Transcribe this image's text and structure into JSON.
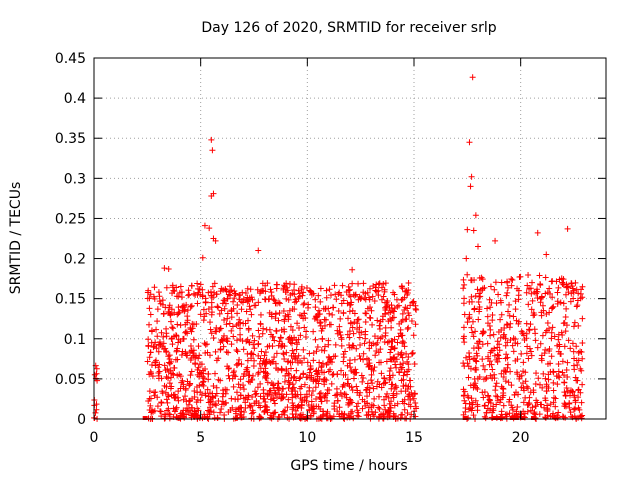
{
  "chart_data": {
    "type": "scatter",
    "title": "Day 126 of 2020, SRMTID for receiver srlp",
    "xlabel": "GPS time / hours",
    "ylabel": "SRMTID / TECUs",
    "xlim": [
      0,
      24
    ],
    "ylim": [
      0,
      0.45
    ],
    "x_ticks": [
      0,
      5,
      10,
      15,
      20
    ],
    "y_ticks": [
      0,
      0.05,
      0.1,
      0.15,
      0.2,
      0.25,
      0.3,
      0.35,
      0.4,
      0.45
    ],
    "x_tick_labels": [
      "0",
      "5",
      "10",
      "15",
      "20"
    ],
    "y_tick_labels": [
      "0",
      "0.05",
      "0.1",
      "0.15",
      "0.2",
      "0.25",
      "0.3",
      "0.35",
      "0.4",
      "0.45"
    ],
    "grid": true,
    "marker": "+",
    "color": "#ff0000",
    "series": [
      {
        "name": "SRMTID",
        "segments": [
          {
            "start": 0.0,
            "end": 0.15,
            "typical_max": 0.075,
            "count": 14
          },
          {
            "start": 2.5,
            "end": 15.1,
            "typical_max": 0.17,
            "count": 1650
          },
          {
            "start": 17.3,
            "end": 22.9,
            "typical_max": 0.18,
            "count": 620
          }
        ],
        "notable_points": [
          {
            "x": 5.5,
            "y": 0.348
          },
          {
            "x": 5.55,
            "y": 0.335
          },
          {
            "x": 5.5,
            "y": 0.278
          },
          {
            "x": 5.6,
            "y": 0.281
          },
          {
            "x": 5.2,
            "y": 0.241
          },
          {
            "x": 5.4,
            "y": 0.238
          },
          {
            "x": 5.6,
            "y": 0.225
          },
          {
            "x": 5.7,
            "y": 0.222
          },
          {
            "x": 5.1,
            "y": 0.201
          },
          {
            "x": 7.7,
            "y": 0.21
          },
          {
            "x": 3.3,
            "y": 0.188
          },
          {
            "x": 3.5,
            "y": 0.187
          },
          {
            "x": 12.1,
            "y": 0.186
          },
          {
            "x": 17.75,
            "y": 0.426
          },
          {
            "x": 17.6,
            "y": 0.345
          },
          {
            "x": 17.7,
            "y": 0.302
          },
          {
            "x": 17.65,
            "y": 0.29
          },
          {
            "x": 17.9,
            "y": 0.254
          },
          {
            "x": 17.5,
            "y": 0.236
          },
          {
            "x": 17.8,
            "y": 0.235
          },
          {
            "x": 22.2,
            "y": 0.237
          },
          {
            "x": 20.8,
            "y": 0.232
          },
          {
            "x": 18.0,
            "y": 0.215
          },
          {
            "x": 18.8,
            "y": 0.222
          },
          {
            "x": 17.45,
            "y": 0.2
          },
          {
            "x": 21.2,
            "y": 0.205
          }
        ],
        "zero_points": [
          2.4,
          9.9,
          17.4,
          18.8,
          19.0,
          19.6,
          19.8,
          20.1,
          20.6
        ]
      }
    ]
  }
}
